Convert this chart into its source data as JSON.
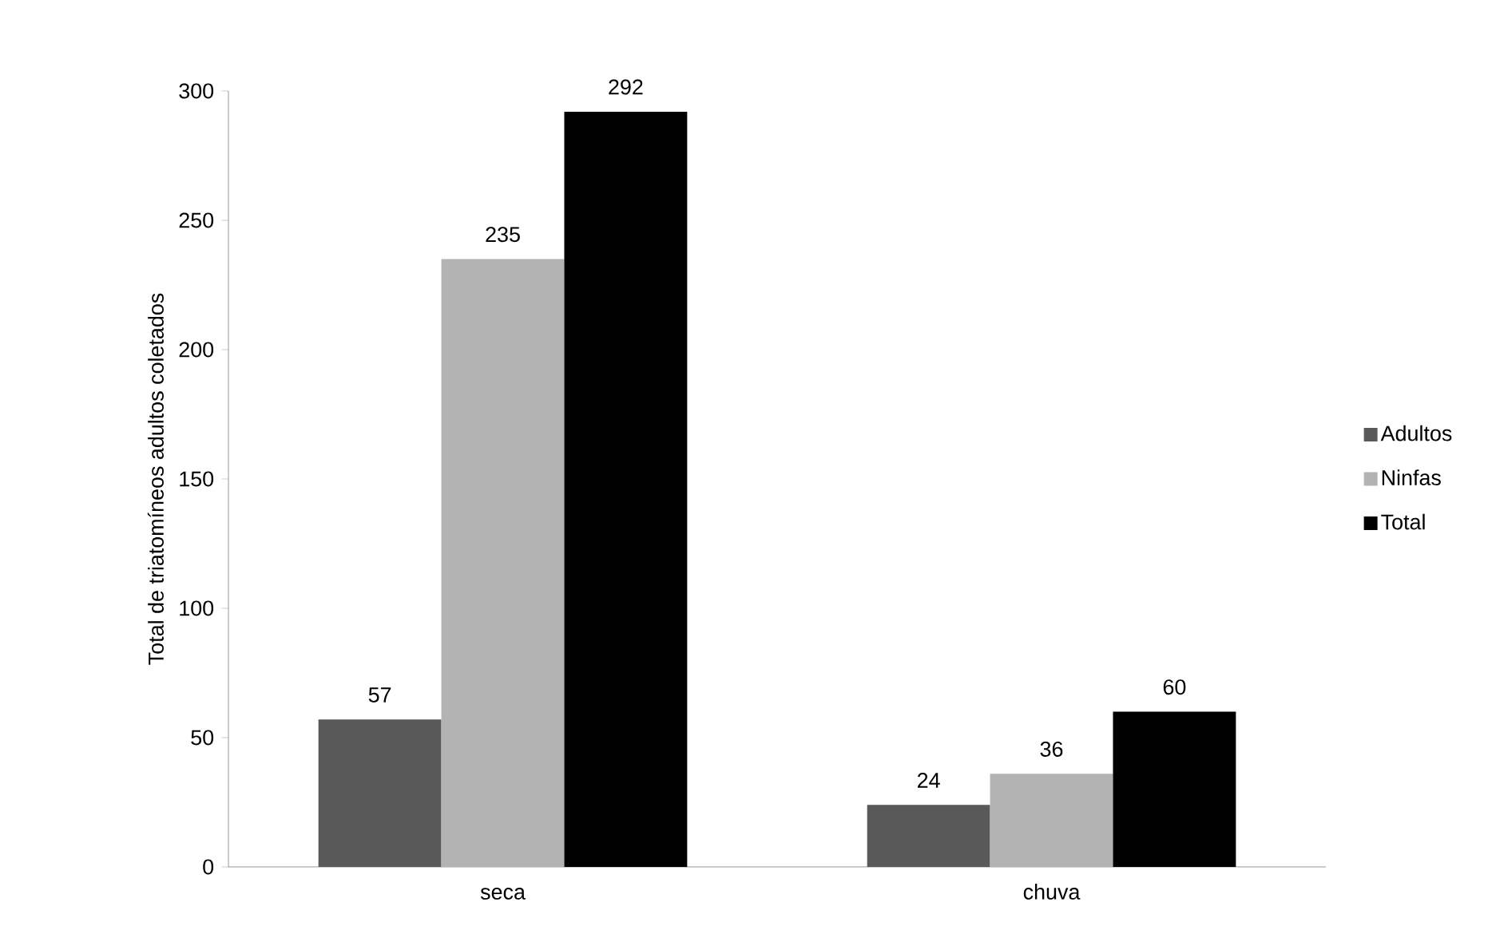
{
  "chart_data": {
    "type": "bar",
    "ylabel": "Total de triatomíneos adultos coletados",
    "categories": [
      "seca",
      "chuva"
    ],
    "series": [
      {
        "name": "Adultos",
        "color": "#595959",
        "values": [
          57,
          24
        ]
      },
      {
        "name": "Ninfas",
        "color": "#b3b3b3",
        "values": [
          235,
          36
        ]
      },
      {
        "name": "Total",
        "color": "#000000",
        "values": [
          292,
          60
        ]
      }
    ],
    "ylim": [
      0,
      300
    ],
    "yticks": [
      0,
      50,
      100,
      150,
      200,
      250,
      300
    ],
    "data_labels": true,
    "legend": "right",
    "grid": false
  }
}
